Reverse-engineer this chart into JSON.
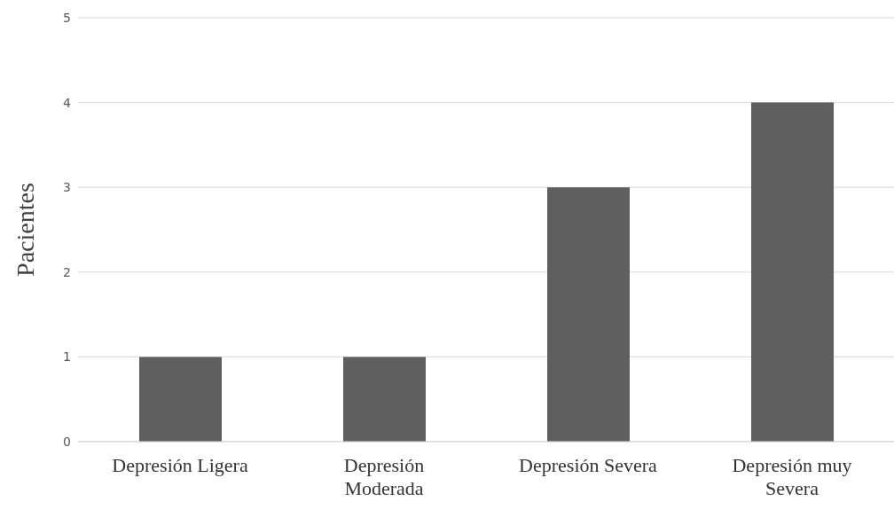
{
  "chart_data": {
    "type": "bar",
    "ylabel": "Pacientes",
    "categories": [
      "Depresión Ligera",
      "Depresión Moderada",
      "Depresión Severa",
      "Depresión muy Severa"
    ],
    "values": [
      1,
      1,
      3,
      4
    ],
    "color": "#5f5f5f",
    "ylim": [
      0,
      5
    ],
    "yticks": [
      0,
      1,
      2,
      3,
      4,
      5
    ],
    "grid": "y",
    "legend": false
  }
}
